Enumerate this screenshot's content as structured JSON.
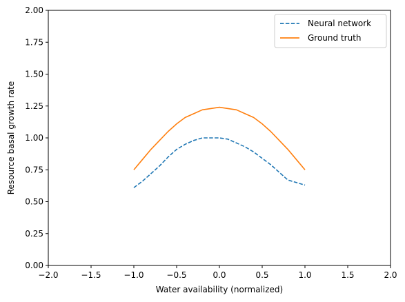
{
  "chart_data": {
    "type": "line",
    "xlabel": "Water availability (normalized)",
    "ylabel": "Resource basal growth rate",
    "xlim": [
      -2.0,
      2.0
    ],
    "ylim": [
      0.0,
      2.0
    ],
    "xticks": [
      "−2.0",
      "−1.5",
      "−1.0",
      "−0.5",
      "0.0",
      "0.5",
      "1.0",
      "1.5",
      "2.0"
    ],
    "xtick_values": [
      -2.0,
      -1.5,
      -1.0,
      -0.5,
      0.0,
      0.5,
      1.0,
      1.5,
      2.0
    ],
    "yticks": [
      "0.00",
      "0.25",
      "0.50",
      "0.75",
      "1.00",
      "1.25",
      "1.50",
      "1.75",
      "2.00"
    ],
    "ytick_values": [
      0.0,
      0.25,
      0.5,
      0.75,
      1.0,
      1.25,
      1.5,
      1.75,
      2.0
    ],
    "grid": false,
    "legend_position": "top-right",
    "x": [
      -1.0,
      -0.9,
      -0.8,
      -0.7,
      -0.6,
      -0.5,
      -0.4,
      -0.3,
      -0.2,
      -0.1,
      0.0,
      0.1,
      0.2,
      0.3,
      0.4,
      0.5,
      0.6,
      0.7,
      0.8,
      0.9,
      1.0
    ],
    "series": [
      {
        "name": "Neural network",
        "style": "dashed",
        "color": "#1f77b4",
        "values": [
          0.61,
          0.66,
          0.72,
          0.78,
          0.85,
          0.91,
          0.95,
          0.98,
          1.0,
          1.0,
          1.0,
          0.99,
          0.96,
          0.93,
          0.89,
          0.84,
          0.79,
          0.73,
          0.67,
          0.65,
          0.63
        ]
      },
      {
        "name": "Ground truth",
        "style": "solid",
        "color": "#ff7f0e",
        "values": [
          0.75,
          0.83,
          0.91,
          0.98,
          1.05,
          1.11,
          1.16,
          1.19,
          1.22,
          1.23,
          1.24,
          1.23,
          1.22,
          1.19,
          1.16,
          1.11,
          1.05,
          0.98,
          0.91,
          0.83,
          0.75
        ]
      }
    ]
  }
}
